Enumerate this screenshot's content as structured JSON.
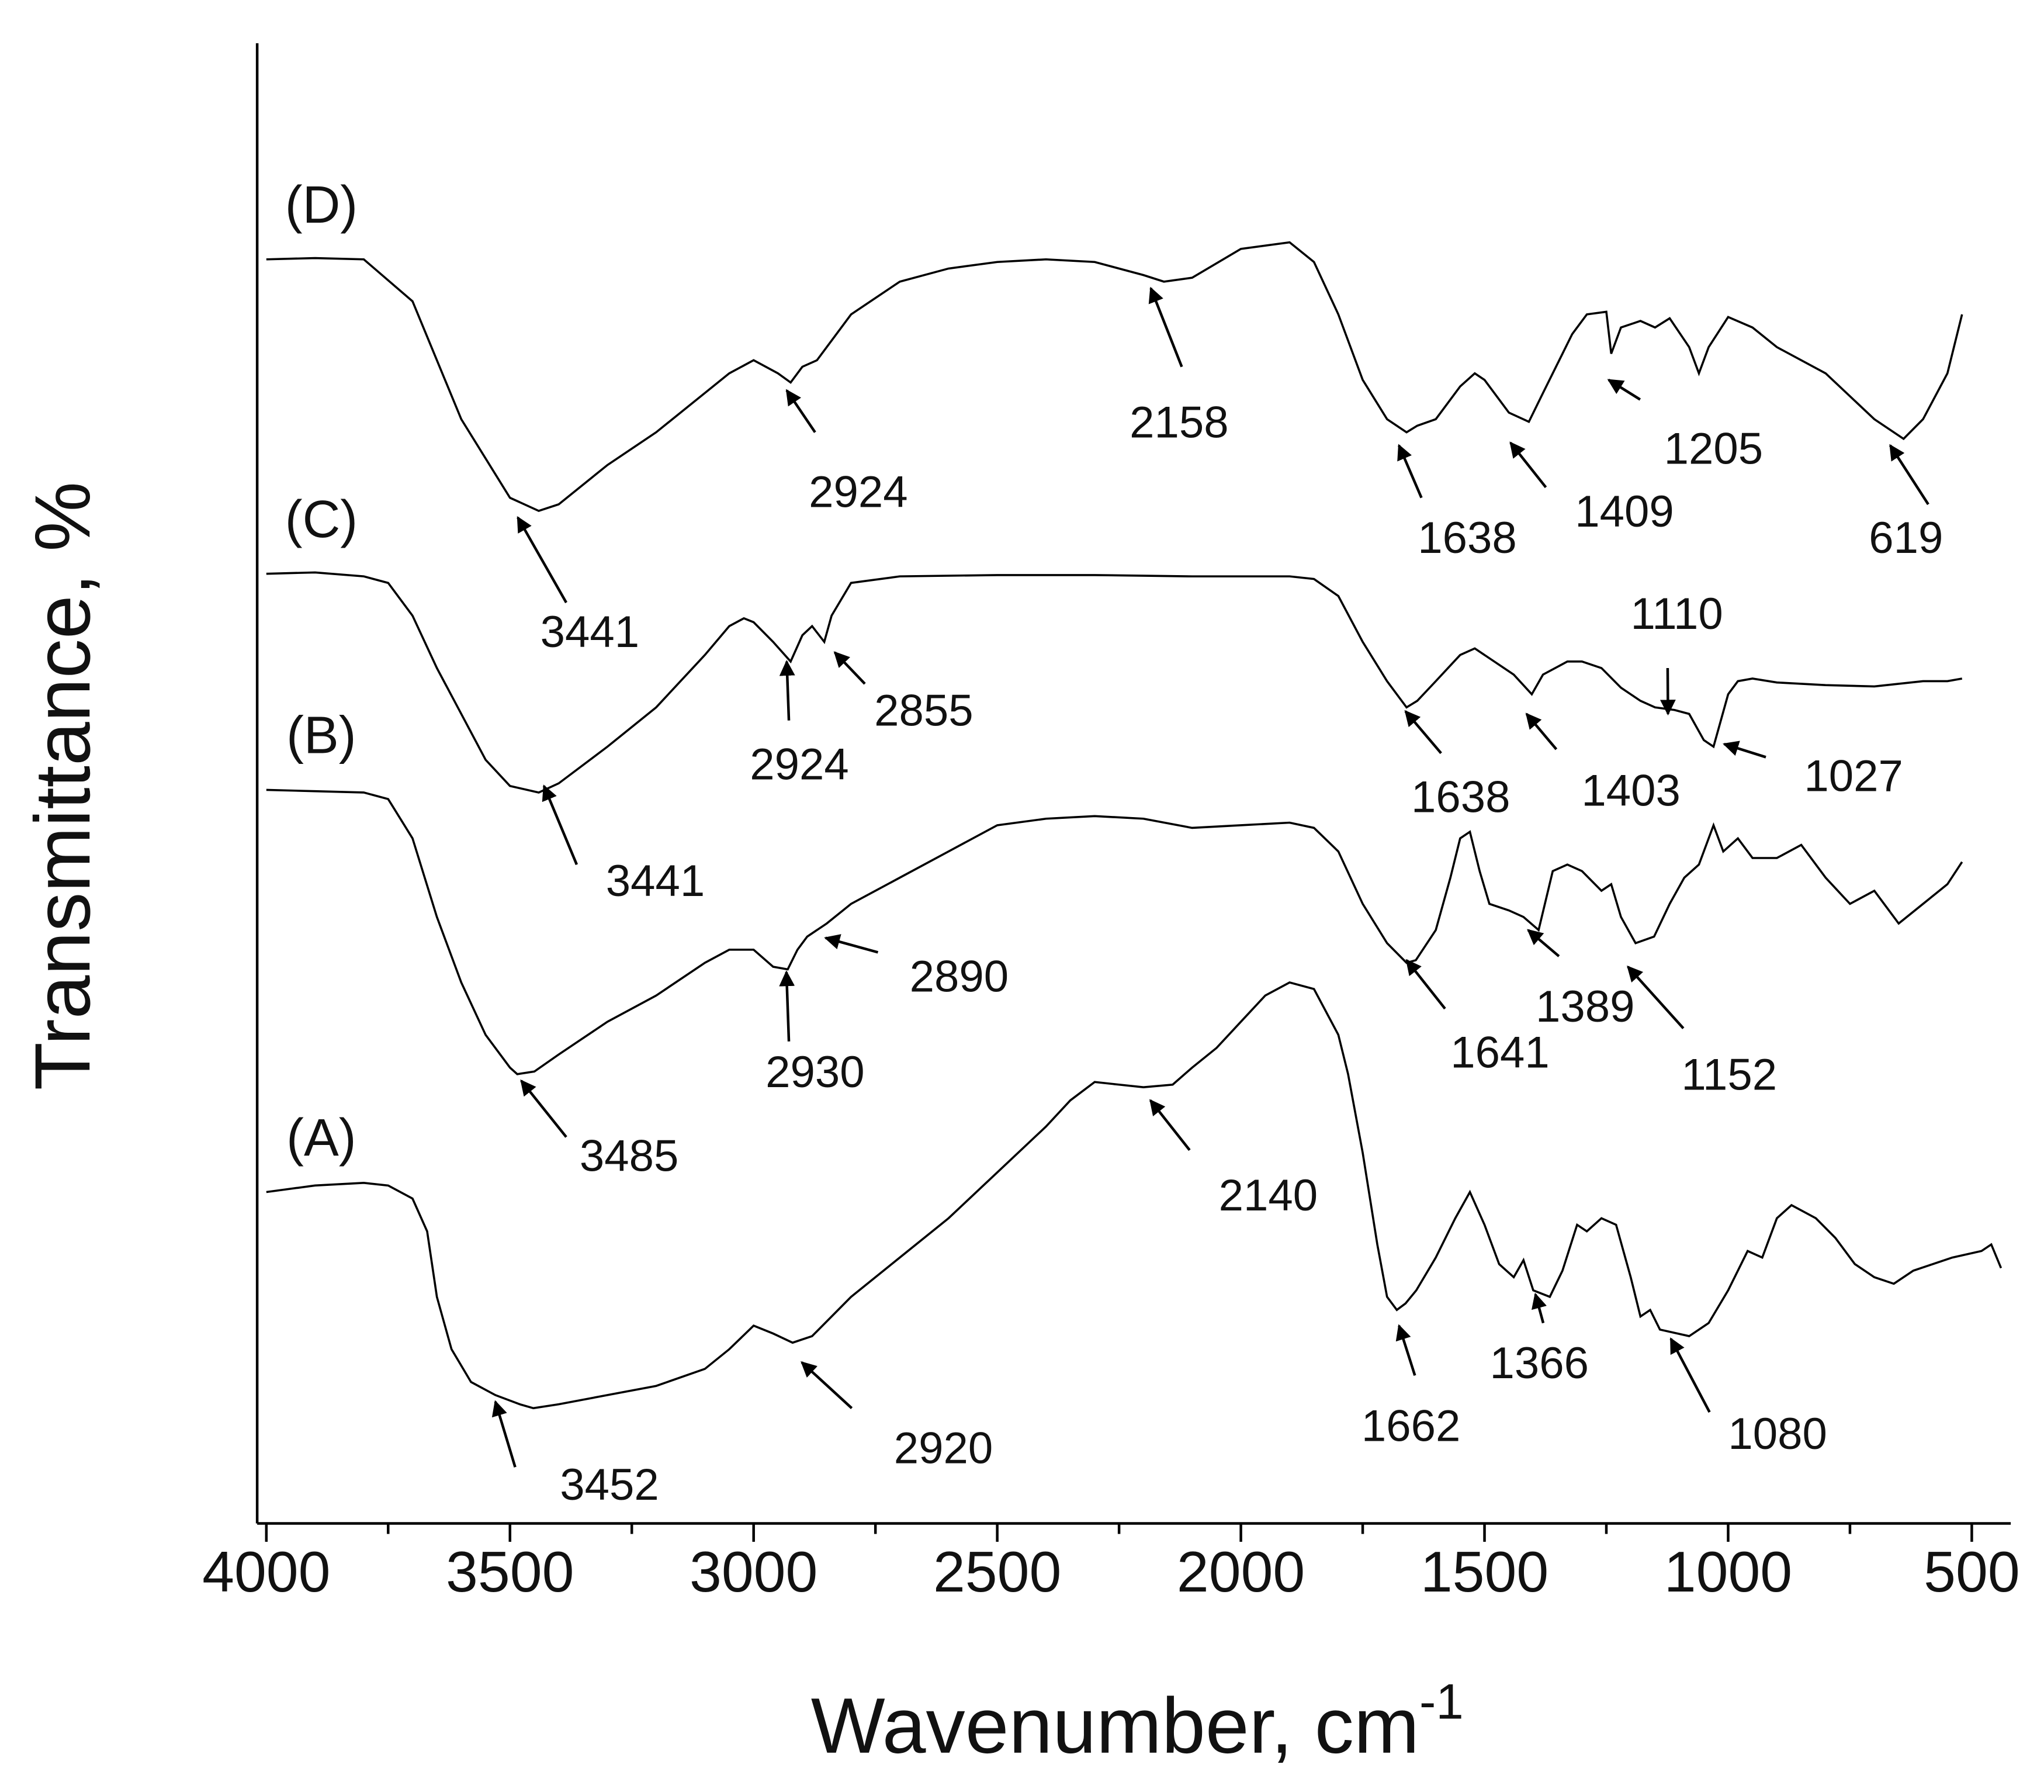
{
  "chart_data": {
    "type": "line",
    "xlabel": "Wavenumber, cm",
    "xlabel_superscript": "-1",
    "ylabel": "Transmittance, %",
    "xlim": [
      4000,
      420
    ],
    "ylim": [
      0,
      113
    ],
    "xticks": [
      4000,
      3500,
      3000,
      2500,
      2000,
      1500,
      1000,
      500
    ],
    "xminorticks": [
      3750,
      3250,
      2750,
      2250,
      1750,
      1250,
      750
    ],
    "series": [
      {
        "name": "(A)",
        "color": "#000000",
        "x": [
          4000,
          3900,
          3800,
          3750,
          3700,
          3670,
          3650,
          3620,
          3580,
          3530,
          3480,
          3452,
          3400,
          3300,
          3200,
          3100,
          3050,
          3000,
          2960,
          2920,
          2880,
          2800,
          2700,
          2600,
          2500,
          2400,
          2350,
          2300,
          2250,
          2200,
          2140,
          2100,
          2050,
          2000,
          1950,
          1900,
          1850,
          1800,
          1780,
          1750,
          1720,
          1700,
          1680,
          1662,
          1640,
          1600,
          1560,
          1530,
          1500,
          1470,
          1440,
          1420,
          1400,
          1366,
          1340,
          1310,
          1290,
          1260,
          1230,
          1200,
          1180,
          1160,
          1140,
          1080,
          1040,
          1000,
          960,
          930,
          900,
          870,
          820,
          780,
          740,
          700,
          660,
          620,
          580,
          540,
          480,
          460,
          440
        ],
        "values": [
          25.3,
          25.8,
          26.0,
          25.8,
          24.8,
          22.3,
          17.3,
          13.3,
          10.8,
          9.8,
          9.1,
          8.8,
          9.1,
          9.8,
          10.5,
          11.8,
          13.3,
          15.1,
          14.5,
          13.8,
          14.3,
          17.3,
          20.3,
          23.3,
          26.8,
          30.3,
          32.3,
          33.7,
          33.5,
          33.3,
          33.5,
          34.8,
          36.3,
          38.3,
          40.3,
          41.3,
          40.8,
          37.3,
          34.3,
          28.3,
          21.3,
          17.3,
          16.3,
          16.8,
          17.8,
          20.3,
          23.3,
          25.3,
          22.8,
          19.8,
          18.8,
          20.1,
          17.8,
          17.3,
          19.3,
          22.8,
          22.3,
          23.3,
          22.8,
          18.8,
          15.8,
          16.3,
          14.8,
          14.3,
          15.3,
          17.8,
          20.8,
          20.3,
          23.3,
          24.3,
          23.3,
          21.8,
          19.8,
          18.8,
          18.3,
          19.3,
          19.8,
          20.3,
          20.8,
          21.3,
          19.5
        ],
        "annotations": [
          {
            "x": 3452,
            "label": "3452"
          },
          {
            "x": 2920,
            "label": "2920"
          },
          {
            "x": 2140,
            "label": "2140"
          },
          {
            "x": 1662,
            "label": "1662"
          },
          {
            "x": 1366,
            "label": "1366"
          },
          {
            "x": 1080,
            "label": "1080"
          }
        ]
      },
      {
        "name": "(B)",
        "color": "#000000",
        "x": [
          4000,
          3900,
          3800,
          3750,
          3700,
          3650,
          3600,
          3550,
          3500,
          3485,
          3450,
          3400,
          3300,
          3200,
          3100,
          3050,
          3000,
          2960,
          2930,
          2910,
          2890,
          2850,
          2800,
          2700,
          2600,
          2500,
          2400,
          2300,
          2200,
          2100,
          2000,
          1900,
          1850,
          1800,
          1750,
          1700,
          1660,
          1641,
          1600,
          1570,
          1550,
          1530,
          1510,
          1490,
          1450,
          1420,
          1389,
          1360,
          1330,
          1300,
          1260,
          1240,
          1220,
          1190,
          1152,
          1120,
          1090,
          1060,
          1030,
          1010,
          980,
          950,
          900,
          850,
          800,
          750,
          700,
          650,
          600,
          550,
          520
        ],
        "values": [
          56.0,
          55.9,
          55.8,
          55.3,
          52.3,
          46.3,
          41.3,
          37.3,
          34.8,
          34.3,
          34.5,
          35.8,
          38.3,
          40.3,
          42.8,
          43.8,
          43.8,
          42.5,
          42.3,
          43.8,
          44.8,
          45.8,
          47.3,
          49.3,
          51.3,
          53.3,
          53.8,
          54.0,
          53.8,
          53.1,
          53.3,
          53.5,
          53.1,
          51.3,
          47.3,
          44.3,
          42.8,
          43.0,
          45.3,
          49.3,
          52.3,
          52.8,
          49.8,
          47.3,
          46.8,
          46.3,
          45.3,
          49.8,
          50.3,
          49.8,
          48.3,
          48.8,
          46.3,
          44.3,
          44.8,
          47.3,
          49.3,
          50.3,
          53.3,
          51.3,
          52.3,
          50.8,
          50.8,
          51.8,
          49.3,
          47.3,
          48.3,
          45.8,
          47.3,
          48.8,
          50.5
        ],
        "annotations": [
          {
            "x": 3485,
            "label": "3485"
          },
          {
            "x": 2930,
            "label": "2930"
          },
          {
            "x": 2890,
            "label": "2890"
          },
          {
            "x": 1641,
            "label": "1641"
          },
          {
            "x": 1389,
            "label": "1389"
          },
          {
            "x": 1152,
            "label": "1152"
          }
        ]
      },
      {
        "name": "(C)",
        "color": "#000000",
        "x": [
          4000,
          3900,
          3800,
          3750,
          3700,
          3650,
          3600,
          3550,
          3500,
          3441,
          3400,
          3300,
          3200,
          3100,
          3050,
          3020,
          3000,
          2960,
          2924,
          2900,
          2880,
          2855,
          2840,
          2800,
          2700,
          2500,
          2300,
          2100,
          1900,
          1850,
          1800,
          1750,
          1700,
          1660,
          1638,
          1600,
          1550,
          1520,
          1480,
          1440,
          1403,
          1380,
          1330,
          1300,
          1260,
          1220,
          1180,
          1150,
          1110,
          1080,
          1050,
          1030,
          1000,
          980,
          950,
          900,
          800,
          700,
          650,
          600,
          550,
          520
        ],
        "values": [
          72.5,
          72.6,
          72.3,
          71.8,
          69.3,
          65.3,
          61.8,
          58.3,
          56.3,
          55.8,
          56.5,
          59.3,
          62.3,
          66.3,
          68.5,
          69.1,
          68.8,
          67.3,
          65.8,
          67.8,
          68.5,
          67.3,
          69.3,
          71.8,
          72.3,
          72.4,
          72.4,
          72.3,
          72.3,
          72.1,
          70.8,
          67.3,
          64.3,
          62.3,
          62.8,
          64.3,
          66.3,
          66.8,
          65.8,
          64.8,
          63.3,
          64.8,
          65.8,
          65.8,
          65.3,
          63.8,
          62.8,
          62.3,
          62.1,
          61.8,
          59.8,
          59.3,
          63.3,
          64.3,
          64.5,
          64.2,
          64.0,
          63.9,
          64.1,
          64.3,
          64.3,
          64.5
        ],
        "annotations": [
          {
            "x": 3441,
            "label": "3441"
          },
          {
            "x": 2924,
            "label": "2924"
          },
          {
            "x": 2855,
            "label": "2855"
          },
          {
            "x": 1638,
            "label": "1638"
          },
          {
            "x": 1403,
            "label": "1403"
          },
          {
            "x": 1110,
            "label": "1110"
          },
          {
            "x": 1027,
            "label": "1027"
          }
        ]
      },
      {
        "name": "(D)",
        "color": "#000000",
        "x": [
          4000,
          3900,
          3800,
          3700,
          3600,
          3500,
          3441,
          3400,
          3300,
          3200,
          3100,
          3050,
          3000,
          2950,
          2924,
          2900,
          2870,
          2850,
          2800,
          2700,
          2600,
          2500,
          2400,
          2300,
          2200,
          2158,
          2100,
          2000,
          1900,
          1850,
          1800,
          1750,
          1700,
          1660,
          1638,
          1600,
          1550,
          1520,
          1500,
          1450,
          1409,
          1380,
          1320,
          1290,
          1250,
          1240,
          1220,
          1180,
          1150,
          1120,
          1080,
          1060,
          1040,
          1000,
          950,
          900,
          800,
          700,
          640,
          600,
          550,
          520
        ],
        "values": [
          96.5,
          96.6,
          96.5,
          93.3,
          84.3,
          78.3,
          77.3,
          77.8,
          80.8,
          83.3,
          86.3,
          87.8,
          88.8,
          87.8,
          87.1,
          88.3,
          88.8,
          89.8,
          92.3,
          94.8,
          95.8,
          96.3,
          96.5,
          96.3,
          95.3,
          94.8,
          95.1,
          97.3,
          97.8,
          96.3,
          92.3,
          87.3,
          84.3,
          83.3,
          83.8,
          84.3,
          86.8,
          87.8,
          87.3,
          84.8,
          84.1,
          86.3,
          90.8,
          92.3,
          92.5,
          89.3,
          91.3,
          91.8,
          91.3,
          92.0,
          89.8,
          87.8,
          89.8,
          92.1,
          91.3,
          89.8,
          87.8,
          84.3,
          82.8,
          84.3,
          87.8,
          92.3
        ],
        "annotations": [
          {
            "x": 3441,
            "label": "3441"
          },
          {
            "x": 2924,
            "label": "2924"
          },
          {
            "x": 2158,
            "label": "2158"
          },
          {
            "x": 1638,
            "label": "1638"
          },
          {
            "x": 1409,
            "label": "1409"
          },
          {
            "x": 1205,
            "label": "1205"
          },
          {
            "x": 619,
            "label": "619"
          }
        ]
      }
    ]
  }
}
